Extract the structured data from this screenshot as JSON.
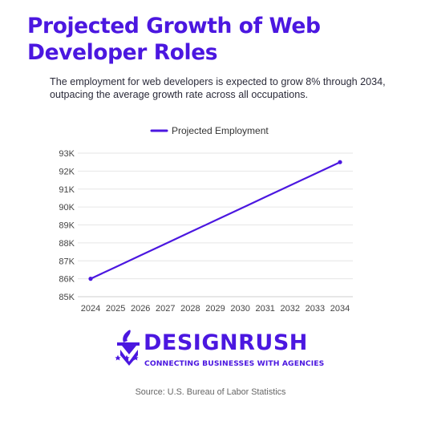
{
  "header": {
    "title": "Projected Growth of Web Developer Roles",
    "subtitle": "The employment for web developers is expected to grow 8% through 2034, outpacing the average growth rate across all occupations."
  },
  "chart_data": {
    "type": "line",
    "x": [
      2024,
      2025,
      2026,
      2027,
      2028,
      2029,
      2030,
      2031,
      2032,
      2033,
      2034
    ],
    "series": [
      {
        "name": "Projected Employment",
        "color": "#4b17e0",
        "values": [
          86000,
          86650,
          87300,
          87950,
          88600,
          89250,
          89900,
          90550,
          91200,
          91850,
          92500
        ]
      }
    ],
    "yticks": [
      "85K",
      "86K",
      "87K",
      "88K",
      "89K",
      "90K",
      "91K",
      "92K",
      "93K"
    ],
    "xticks": [
      "2024",
      "2025",
      "2026",
      "2027",
      "2028",
      "2029",
      "2030",
      "2031",
      "2032",
      "2033",
      "2034"
    ],
    "ylim": [
      85000,
      93000
    ],
    "grid": true,
    "legend_position": "top-center"
  },
  "brand": {
    "name": "DESIGNRUSH",
    "tagline": "CONNECTING BUSINESSES WITH AGENCIES",
    "color": "#4b17e0",
    "icon": "designrush-logo-icon"
  },
  "footer": {
    "source": "Source: U.S. Bureau of Labor Statistics"
  }
}
